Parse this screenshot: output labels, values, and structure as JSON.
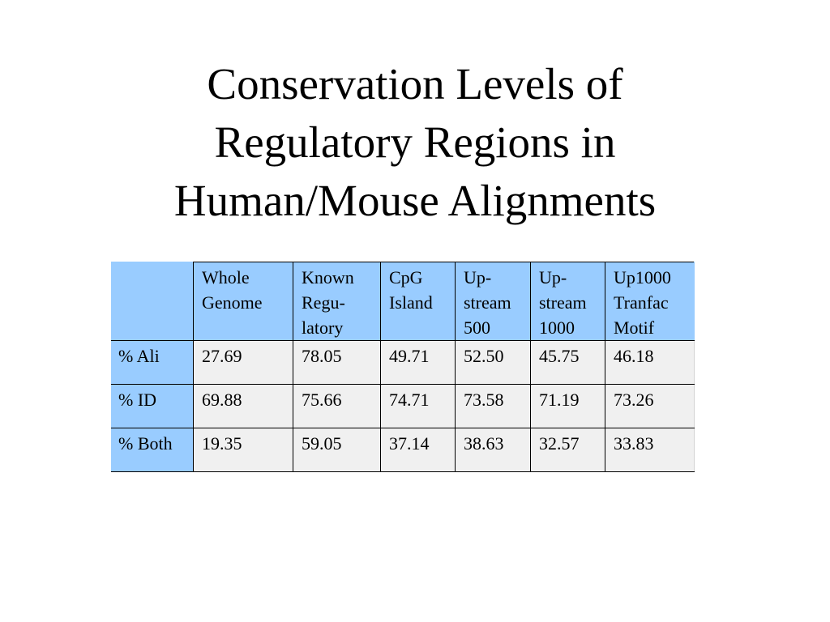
{
  "slide": {
    "title_lines": [
      "Conservation Levels of",
      "Regulatory Regions in",
      "Human/Mouse Alignments"
    ]
  },
  "table": {
    "columns": [
      {
        "lines": [
          "Whole",
          "Genome"
        ]
      },
      {
        "lines": [
          "Known",
          "Regu-",
          "latory"
        ]
      },
      {
        "lines": [
          "CpG",
          "Island"
        ]
      },
      {
        "lines": [
          "Up-",
          "stream",
          "500"
        ]
      },
      {
        "lines": [
          "Up-",
          "stream",
          "1000"
        ]
      },
      {
        "lines": [
          "Up1000",
          "Tranfac",
          "Motif"
        ]
      }
    ],
    "rows": [
      {
        "label": "% Ali",
        "values": [
          "27.69",
          "78.05",
          "49.71",
          "52.50",
          "45.75",
          "46.18"
        ]
      },
      {
        "label": "% ID",
        "values": [
          "69.88",
          "75.66",
          "74.71",
          "73.58",
          "71.19",
          "73.26"
        ]
      },
      {
        "label": "% Both",
        "values": [
          "19.35",
          "59.05",
          "37.14",
          "38.63",
          "32.57",
          "33.83"
        ]
      }
    ]
  },
  "colors": {
    "header_fill": "#99ccff",
    "cell_fill": "#f0f0f0",
    "border": "#000000"
  }
}
